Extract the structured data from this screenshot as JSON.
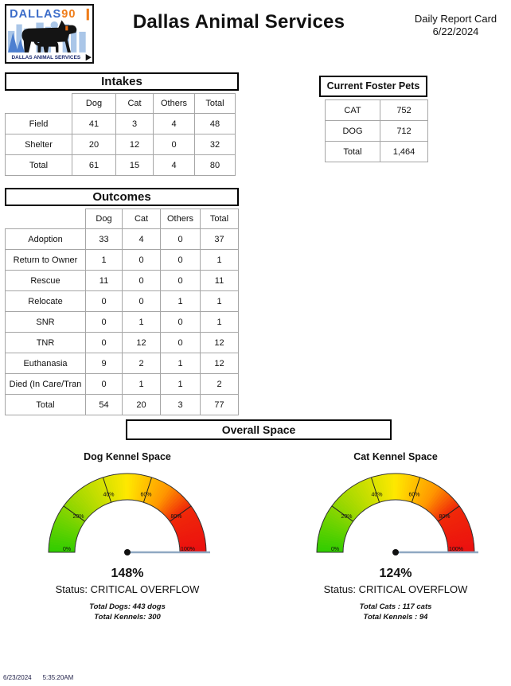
{
  "header": {
    "title": "Dallas Animal Services",
    "report_name": "Daily Report Card",
    "report_date": "6/22/2024",
    "logo": {
      "name_part1": "DALLAS",
      "name_part2": "90",
      "banner": "DALLAS ANIMAL SERVICES"
    }
  },
  "intakes": {
    "title": "Intakes",
    "columns": [
      "Dog",
      "Cat",
      "Others",
      "Total"
    ],
    "rows": [
      {
        "label": "Field",
        "values": [
          41,
          3,
          4,
          48
        ]
      },
      {
        "label": "Shelter",
        "values": [
          20,
          12,
          0,
          32
        ]
      },
      {
        "label": "Total",
        "values": [
          61,
          15,
          4,
          80
        ]
      }
    ]
  },
  "foster": {
    "title": "Current Foster Pets",
    "rows": [
      {
        "label": "CAT",
        "value": "752"
      },
      {
        "label": "DOG",
        "value": "712"
      },
      {
        "label": "Total",
        "value": "1,464"
      }
    ]
  },
  "outcomes": {
    "title": "Outcomes",
    "columns": [
      "Dog",
      "Cat",
      "Others",
      "Total"
    ],
    "rows": [
      {
        "label": "Adoption",
        "values": [
          33,
          4,
          0,
          37
        ]
      },
      {
        "label": "Return to Owner",
        "values": [
          1,
          0,
          0,
          1
        ]
      },
      {
        "label": "Rescue",
        "values": [
          11,
          0,
          0,
          11
        ]
      },
      {
        "label": "Relocate",
        "values": [
          0,
          0,
          1,
          1
        ]
      },
      {
        "label": "SNR",
        "values": [
          0,
          1,
          0,
          1
        ]
      },
      {
        "label": "TNR",
        "values": [
          0,
          12,
          0,
          12
        ]
      },
      {
        "label": "Euthanasia",
        "values": [
          9,
          2,
          1,
          12
        ]
      },
      {
        "label": "Died (In Care/Tran",
        "values": [
          0,
          1,
          1,
          2
        ]
      },
      {
        "label": "Total",
        "values": [
          54,
          20,
          3,
          77
        ]
      }
    ]
  },
  "overall_space": {
    "title": "Overall Space",
    "gauges": [
      {
        "title": "Dog Kennel Space",
        "value_pct": 148,
        "value_label": "148%",
        "status": "Status: CRITICAL OVERFLOW",
        "detail1": "Total Dogs:  443 dogs",
        "detail2": "Total Kennels: 300",
        "ticks": [
          "0%",
          "20%",
          "40%",
          "60%",
          "80%",
          "100%"
        ]
      },
      {
        "title": "Cat Kennel Space",
        "value_pct": 124,
        "value_label": "124%",
        "status": "Status: CRITICAL OVERFLOW",
        "detail1": "Total Cats :  117 cats",
        "detail2": "Total Kennels : 94",
        "ticks": [
          "0%",
          "20%",
          "40%",
          "60%",
          "80%",
          "100%"
        ]
      }
    ]
  },
  "footer": {
    "date": "6/23/2024",
    "time": "5:35:20AM"
  },
  "colors": {
    "logo_blue": "#3b6cc9",
    "logo_orange": "#ef7d1a",
    "skyline_light": "#aac6e8",
    "skyline_dark": "#4d7fd0",
    "banner_navy": "#1b2a70",
    "table_border": "#a6a6a6",
    "gauge_outline": "#333333",
    "gauge_needle": "#8fa8c2",
    "gauge_stops": [
      {
        "t": 0,
        "color": "#2ecc00"
      },
      {
        "t": 0.25,
        "color": "#a0d800"
      },
      {
        "t": 0.5,
        "color": "#ffe800"
      },
      {
        "t": 0.68,
        "color": "#ff9600"
      },
      {
        "t": 0.8,
        "color": "#f02808"
      },
      {
        "t": 1,
        "color": "#eb0f0f"
      }
    ]
  },
  "chart_data": [
    {
      "type": "gauge",
      "title": "Dog Kennel Space",
      "value_pct": 148,
      "axis_min_pct": 0,
      "axis_max_pct": 100,
      "tick_labels": [
        "0%",
        "20%",
        "40%",
        "60%",
        "80%",
        "100%"
      ],
      "status": "CRITICAL OVERFLOW",
      "total_dogs": 443,
      "total_kennels": 300
    },
    {
      "type": "gauge",
      "title": "Cat Kennel Space",
      "value_pct": 124,
      "axis_min_pct": 0,
      "axis_max_pct": 100,
      "tick_labels": [
        "0%",
        "20%",
        "40%",
        "60%",
        "80%",
        "100%"
      ],
      "status": "CRITICAL OVERFLOW",
      "total_cats": 117,
      "total_kennels": 94
    }
  ]
}
